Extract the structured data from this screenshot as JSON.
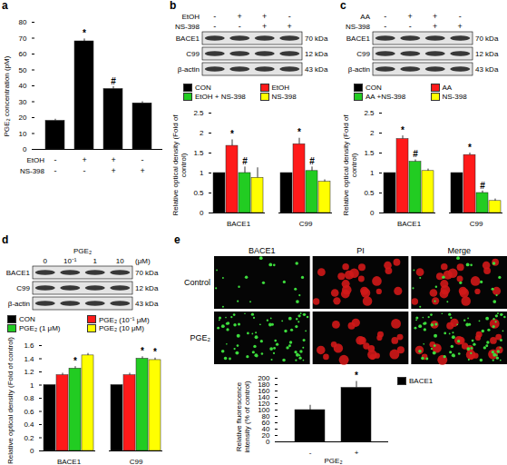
{
  "chart_data": [
    {
      "panel": "a",
      "type": "bar",
      "ylabel": "PGE₂ concentration (pM)",
      "values": [
        18,
        68,
        38,
        29
      ],
      "errors": [
        1,
        1.5,
        1.5,
        1
      ],
      "significance": [
        null,
        "*",
        "#",
        null
      ],
      "color": "#000000",
      "treatments": [
        {
          "name": "EtOH",
          "signs": [
            "-",
            "+",
            "+",
            "-"
          ]
        },
        {
          "name": "NS-398",
          "signs": [
            "-",
            "-",
            "+",
            "+"
          ]
        }
      ],
      "ylim": [
        0,
        80
      ],
      "yticks": [
        0,
        10,
        20,
        30,
        40,
        50,
        60,
        70,
        80
      ],
      "tick_labels": "y"
    },
    {
      "panel": "b",
      "type": "bar",
      "ylabel": "Relative optical density (Fold of control)",
      "categories": [
        "BACE1",
        "C99"
      ],
      "series": [
        {
          "name": "CON",
          "color": "#000000",
          "values": [
            1,
            1
          ],
          "errors": [
            null,
            null
          ],
          "significance": [
            null,
            null
          ]
        },
        {
          "name": "EtOH",
          "color": "#ff1a1a",
          "values": [
            1.68,
            1.72
          ],
          "errors": [
            0.15,
            0.15
          ],
          "significance": [
            "*",
            "*"
          ]
        },
        {
          "name": "EtOH + NS-398",
          "color": "#22cc22",
          "values": [
            1.0,
            1.05
          ],
          "errors": [
            0.15,
            0.1
          ],
          "significance": [
            "#",
            "#"
          ]
        },
        {
          "name": "NS-398",
          "color": "#ffff00",
          "values": [
            0.88,
            0.78
          ],
          "errors": [
            0.25,
            0.05
          ],
          "significance": [
            null,
            null
          ]
        }
      ],
      "ylim": [
        0,
        2.5
      ],
      "yticks": [
        0,
        0.5,
        1,
        1.5,
        2,
        2.5
      ],
      "legend": "top"
    },
    {
      "panel": "c",
      "type": "bar",
      "ylabel": "Relative optical density (Fold of control)",
      "categories": [
        "BACE1",
        "C99"
      ],
      "series": [
        {
          "name": "CON",
          "color": "#000000",
          "values": [
            1,
            1
          ],
          "errors": [
            null,
            null
          ],
          "significance": [
            null,
            null
          ]
        },
        {
          "name": "AA",
          "color": "#ff1a1a",
          "values": [
            1.85,
            1.45
          ],
          "errors": [
            0.08,
            0.05
          ],
          "significance": [
            "*",
            "*"
          ]
        },
        {
          "name": "AA +NS-398",
          "color": "#22cc22",
          "values": [
            1.28,
            0.5
          ],
          "errors": [
            0.05,
            0.05
          ],
          "significance": [
            "#",
            "#"
          ]
        },
        {
          "name": "NS-398",
          "color": "#ffff00",
          "values": [
            1.05,
            0.3
          ],
          "errors": [
            0.05,
            0.05
          ],
          "significance": [
            null,
            null
          ]
        }
      ],
      "ylim": [
        0,
        2.5
      ],
      "yticks": [
        0,
        0.5,
        1,
        1.5,
        2,
        2.5
      ],
      "legend": "top"
    },
    {
      "panel": "d",
      "type": "bar",
      "ylabel": "Relative optical density (Fold of control)",
      "categories": [
        "BACE1",
        "C99"
      ],
      "series": [
        {
          "name": "CON",
          "color": "#000000",
          "values": [
            1,
            1
          ],
          "errors": [
            null,
            null
          ],
          "significance": [
            null,
            null
          ]
        },
        {
          "name": "PGE₂ (10⁻¹ μM)",
          "color": "#ff1a1a",
          "values": [
            1.15,
            1.15
          ],
          "errors": [
            0.03,
            0.03
          ],
          "significance": [
            null,
            null
          ]
        },
        {
          "name": "PGE₂ (1 μM)",
          "color": "#22cc22",
          "values": [
            1.25,
            1.4
          ],
          "errors": [
            0.03,
            0.03
          ],
          "significance": [
            "*",
            "*"
          ]
        },
        {
          "name": "PGE₂ (10 μM)",
          "color": "#ffff00",
          "values": [
            1.45,
            1.38
          ],
          "errors": [
            0.03,
            0.03
          ],
          "significance": [
            null,
            "*"
          ]
        }
      ],
      "ylim": [
        0,
        1.6
      ],
      "yticks": [
        0,
        0.2,
        0.4,
        0.6,
        0.8,
        1,
        1.2,
        1.4,
        1.6
      ],
      "legend": "top"
    },
    {
      "panel": "e",
      "type": "bar",
      "ylabel": "Relative fluorescence intensity (% of control)",
      "xlabel": "PGE₂",
      "categories": [
        "-",
        "+"
      ],
      "series": [
        {
          "name": "BACE1",
          "color": "#000000",
          "values": [
            100,
            170
          ],
          "errors": [
            15,
            20
          ],
          "significance": [
            null,
            "*"
          ]
        }
      ],
      "ylim": [
        0,
        200
      ],
      "yticks": [
        0,
        20,
        40,
        60,
        80,
        100,
        120,
        140,
        160,
        180,
        200
      ],
      "legend": "right"
    }
  ],
  "blots": [
    {
      "panel": "b",
      "treatments": [
        {
          "name": "EtOH",
          "signs": [
            "-",
            "+",
            "+",
            "-"
          ]
        },
        {
          "name": "NS-398",
          "signs": [
            "-",
            "-",
            "+",
            "+"
          ]
        }
      ],
      "bands": [
        {
          "name": "BACE1",
          "size": "70 kDa"
        },
        {
          "name": "C99",
          "size": "12 kDa"
        },
        {
          "name": "β-actin",
          "size": "43 kDa"
        }
      ]
    },
    {
      "panel": "c",
      "treatments": [
        {
          "name": "AA",
          "signs": [
            "-",
            "+",
            "+",
            "-"
          ]
        },
        {
          "name": "NS-398",
          "signs": [
            "-",
            "-",
            "+",
            "+"
          ]
        }
      ],
      "bands": [
        {
          "name": "BACE1",
          "size": "70 kDa"
        },
        {
          "name": "C99",
          "size": "12 kDa"
        },
        {
          "name": "β-actin",
          "size": "43 kDa"
        }
      ]
    },
    {
      "panel": "d",
      "dose": {
        "name": "PGE₂",
        "levels": [
          "0",
          "10⁻¹",
          "1",
          "10"
        ],
        "unit": "(μM)"
      },
      "bands": [
        {
          "name": "BACE1",
          "size": "70 kDa"
        },
        {
          "name": "C99",
          "size": "12 kDa"
        },
        {
          "name": "β-actin",
          "size": "43 kDa"
        }
      ]
    }
  ],
  "images": {
    "panel": "e",
    "columns": [
      "BACE1",
      "PI",
      "Merge"
    ],
    "rows": [
      "Control",
      "PGE₂"
    ]
  }
}
